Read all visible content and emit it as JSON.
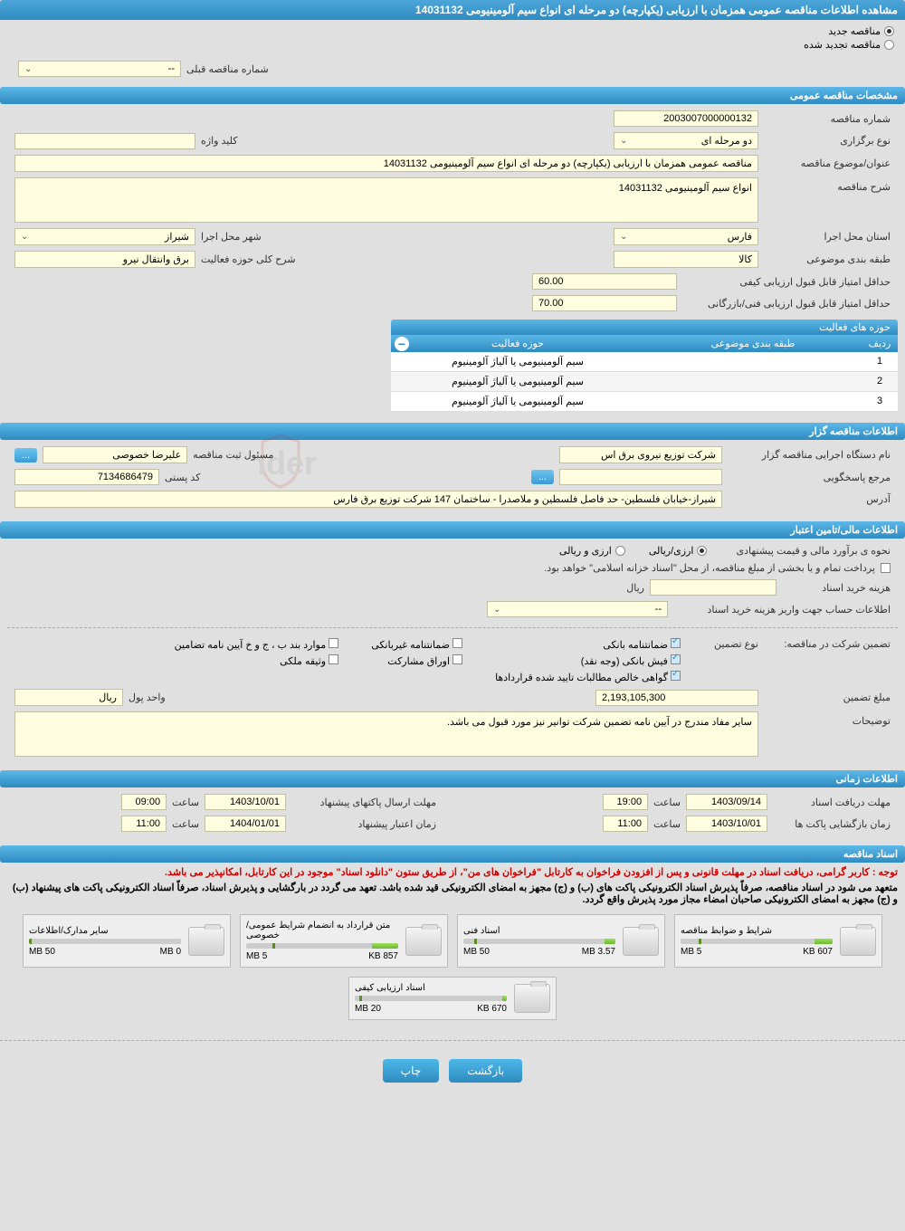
{
  "header": {
    "title": "مشاهده اطلاعات مناقصه عمومی همزمان با ارزیابی (یکپارچه) دو مرحله ای انواع سیم آلومینیومی 14031132"
  },
  "tender_type": {
    "new_label": "مناقصه جدید",
    "renewed_label": "مناقصه تجدید شده",
    "selected": "new"
  },
  "prev_number": {
    "label": "شماره مناقصه قبلی",
    "value": "--"
  },
  "section_general": {
    "title": "مشخصات مناقصه عمومی"
  },
  "general": {
    "number_label": "شماره مناقصه",
    "number": "2003007000000132",
    "type_label": "نوع برگزاری",
    "type": "دو مرحله ای",
    "keyword_label": "کلید واژه",
    "keyword": "",
    "subject_label": "عنوان/موضوع مناقصه",
    "subject": "مناقصه عمومی همزمان با ارزیابی (یکپارچه) دو مرحله ای انواع سیم آلومینیومی 14031132",
    "desc_label": "شرح مناقصه",
    "desc": "انواع سیم آلومینیومی 14031132",
    "province_label": "استان محل اجرا",
    "province": "فارس",
    "city_label": "شهر محل اجرا",
    "city": "شیراز",
    "category_label": "طبقه بندی موضوعی",
    "category": "کالا",
    "activity_desc_label": "شرح کلی حوزه فعالیت",
    "activity_desc": "برق وانتقال نیرو",
    "min_quality_label": "حداقل امتیاز قابل قبول ارزیابی کیفی",
    "min_quality": "60.00",
    "min_tech_label": "حداقل امتیاز قابل قبول ارزیابی فنی/بازرگانی",
    "min_tech": "70.00"
  },
  "activities_table": {
    "title": "حوزه های فعالیت",
    "col_num": "ردیف",
    "col_cat": "طبقه بندی موضوعی",
    "col_act": "حوزه فعالیت",
    "rows": [
      {
        "num": "1",
        "cat": "",
        "act": "سیم آلومینیومی یا آلیاژ آلومینیوم"
      },
      {
        "num": "2",
        "cat": "",
        "act": "سیم آلومینیومی یا آلیاژ آلومینیوم"
      },
      {
        "num": "3",
        "cat": "",
        "act": "سیم آلومینیومی یا آلیاژ آلومینیوم"
      }
    ]
  },
  "section_org": {
    "title": "اطلاعات مناقصه گزار"
  },
  "org": {
    "name_label": "نام دستگاه اجرایی مناقصه گزار",
    "name": "شرکت توزیع نیروی برق اس",
    "responsible_label": "مسئول ثبت مناقصه",
    "responsible": "علیرضا خصوصی",
    "contact_label": "مرجع پاسخگویی",
    "postal_label": "کد پستی",
    "postal": "7134686479",
    "address_label": "آدرس",
    "address": "شیراز-خیابان فلسطین-  حد فاصل فلسطین و ملاصدرا - ساختمان 147 شرکت توزیع برق فارس"
  },
  "section_fin": {
    "title": "اطلاعات مالی/تامین اعتبار"
  },
  "fin": {
    "estimate_label": "نحوه ی برآورد مالی و قیمت پیشنهادی",
    "opt_currency": "ارزی/ریالی",
    "opt_mixed": "ارزی و ریالی",
    "payment_note": "پرداخت تمام و یا بخشی از مبلغ مناقصه، از محل \"اسناد خزانه اسلامی\" خواهد بود.",
    "doc_cost_label": "هزینه خرید اسناد",
    "doc_cost_unit": "ریال",
    "doc_cost": "",
    "account_info_label": "اطلاعات حساب جهت واریز هزینه خرید اسناد",
    "account_info": "--",
    "guarantee_label": "تضمین شرکت در مناقصه:",
    "guarantee_type_label": "نوع تضمین",
    "chk_bank": "ضمانتنامه بانکی",
    "chk_nonbank": "ضمانتنامه غیربانکی",
    "chk_cases": "موارد بند ب ، ج و خ آیین نامه تضامین",
    "chk_cash": "فیش بانکی (وجه نقد)",
    "chk_bonds": "اوراق مشارکت",
    "chk_property": "وثیقه ملکی",
    "chk_contracts": "گواهی خالص مطالبات تایید شده قراردادها",
    "amount_label": "مبلغ تضمین",
    "amount": "2,193,105,300",
    "unit_label": "واحد پول",
    "unit": "ریال",
    "notes_label": "توضیحات",
    "notes": "سایر مفاد مندرج در آیین نامه تضمین شرکت توانیر نیز مورد قبول می باشد."
  },
  "section_time": {
    "title": "اطلاعات زمانی"
  },
  "time": {
    "receive_label": "مهلت دریافت اسناد",
    "receive_date": "1403/09/14",
    "receive_time_label": "ساعت",
    "receive_time": "19:00",
    "send_label": "مهلت ارسال پاکتهای پیشنهاد",
    "send_date": "1403/10/01",
    "send_time_label": "ساعت",
    "send_time": "09:00",
    "open_label": "زمان بازگشایی پاکت ها",
    "open_date": "1403/10/01",
    "open_time_label": "ساعت",
    "open_time": "11:00",
    "validity_label": "زمان اعتبار پیشنهاد",
    "validity_date": "1404/01/01",
    "validity_time_label": "ساعت",
    "validity_time": "11:00"
  },
  "section_docs": {
    "title": "اسناد مناقصه"
  },
  "docs": {
    "note1": "توجه : کاربر گرامی، دریافت اسناد در مهلت قانونی و پس از افزودن فراخوان به کارتابل \"فراخوان های من\"، از طریق ستون \"دانلود اسناد\" موجود در این کارتابل، امکانپذیر می باشد.",
    "note2": "متعهد می شود در اسناد مناقصه، صرفاً پذیرش اسناد الکترونیکی پاکت های (ب) و (ج) مجهز به امضای الکترونیکی قید شده باشد. تعهد می گردد در بارگشایی و پذیرش اسناد، صرفاً اسناد الکترونیکی پاکت های پیشنهاد (ب) و (ج) مجهز به امضای الکترونیکی صاحبان امضاء مجاز مورد پذیرش واقع گردد.",
    "files": [
      {
        "title": "شرایط و ضوابط مناقصه",
        "used": "607 KB",
        "total": "5 MB",
        "pct": 12
      },
      {
        "title": "اسناد فنی",
        "used": "3.57 MB",
        "total": "50 MB",
        "pct": 7
      },
      {
        "title": "متن قرارداد به انضمام شرایط عمومی/خصوصی",
        "used": "857 KB",
        "total": "5 MB",
        "pct": 17
      },
      {
        "title": "سایر مدارک/اطلاعات",
        "used": "0 MB",
        "total": "50 MB",
        "pct": 0
      },
      {
        "title": "اسناد ارزیابی کیفی",
        "used": "670 KB",
        "total": "20 MB",
        "pct": 3
      }
    ]
  },
  "footer": {
    "back": "بازگشت",
    "print": "چاپ"
  },
  "watermark": "AriaTender.net",
  "colors": {
    "header_bg": "#2e8bc0",
    "yellow": "#fffde0",
    "btn_bg": "#4db8e8"
  }
}
